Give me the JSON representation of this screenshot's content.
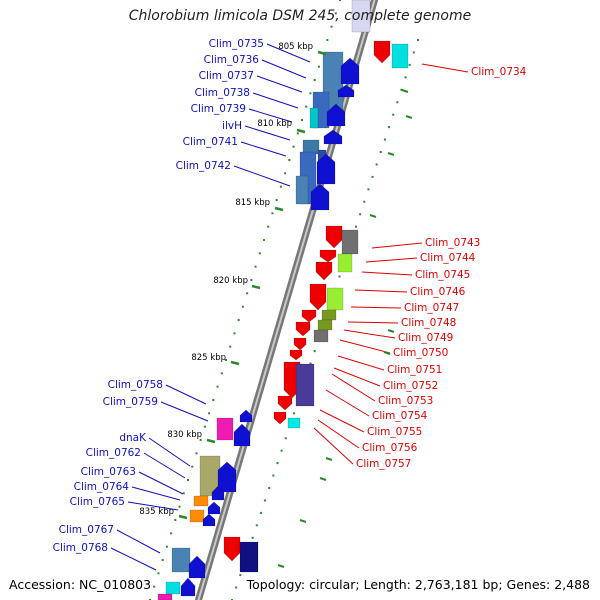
{
  "title": "Chlorobium limicola DSM 245, complete genome",
  "footer": {
    "accession": "Accession: NC_010803",
    "topology": "Topology: circular; Length: 2,763,181 bp; Genes: 2,488"
  },
  "ticks": [
    "805 kbp",
    "810 kbp",
    "815 kbp",
    "820 kbp",
    "825 kbp",
    "830 kbp",
    "835 kbp"
  ],
  "left_genes": [
    "Clim_0735",
    "Clim_0736",
    "Clim_0737",
    "Clim_0738",
    "Clim_0739",
    "ilvH",
    "Clim_0741",
    "Clim_0742",
    "Clim_0758",
    "Clim_0759",
    "dnaK",
    "Clim_0762",
    "Clim_0763",
    "Clim_0764",
    "Clim_0765",
    "Clim_0767",
    "Clim_0768"
  ],
  "right_genes": [
    "Clim_0734",
    "Clim_0743",
    "Clim_0744",
    "Clim_0745",
    "Clim_0746",
    "Clim_0747",
    "Clim_0748",
    "Clim_0749",
    "Clim_0750",
    "Clim_0751",
    "Clim_0752",
    "Clim_0753",
    "Clim_0754",
    "Clim_0755",
    "Clim_0756",
    "Clim_0757"
  ],
  "colors": {
    "forward_label": "#1010c0",
    "reverse_label": "#e00000",
    "backbone": "#8a8a8a",
    "tick": "#2a8a2a"
  }
}
